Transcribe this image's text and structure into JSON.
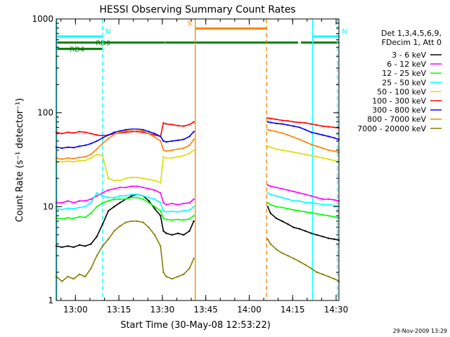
{
  "chart_data": {
    "type": "line",
    "title": "HESSI Observing Summary Count Rates",
    "xlabel": "Start Time (30-May-08 12:53:22)",
    "ylabel": "Count Rate (s⁻¹ detector⁻¹)",
    "ylog": true,
    "xlim_minutes_from_start": [
      0,
      97.6
    ],
    "ylim": [
      1,
      1000
    ],
    "x_ticks": [
      {
        "label": "13:00",
        "minute": 6.63
      },
      {
        "label": "13:15",
        "minute": 21.63
      },
      {
        "label": "13:30",
        "minute": 36.63
      },
      {
        "label": "13:45",
        "minute": 51.63
      },
      {
        "label": "14:00",
        "minute": 66.63
      },
      {
        "label": "14:15",
        "minute": 81.63
      },
      {
        "label": "14:30",
        "minute": 96.63
      }
    ],
    "y_ticks": [
      {
        "label": "1",
        "value": 1
      },
      {
        "label": "10",
        "value": 10
      },
      {
        "label": "100",
        "value": 100
      },
      {
        "label": "1000",
        "value": 1000
      }
    ],
    "gaps_minutes": [
      [
        47.6,
        72.6
      ]
    ],
    "series": [
      {
        "name": "3 - 6 keV",
        "color": "#000000",
        "x": [
          0,
          2,
          4,
          6,
          8,
          10,
          12,
          14,
          16,
          18,
          20,
          22,
          24,
          26,
          28,
          30,
          32,
          34,
          36,
          37,
          38,
          40,
          42,
          44,
          46,
          47.5,
          73,
          74,
          76,
          78,
          80,
          82,
          84,
          86,
          88,
          90,
          92,
          94,
          96,
          97.6
        ],
        "y": [
          3.8,
          3.7,
          3.8,
          3.7,
          3.9,
          3.8,
          4.0,
          4.8,
          6.5,
          9,
          10,
          11,
          12,
          13,
          13.5,
          13,
          11.5,
          9.5,
          8,
          5.5,
          5.2,
          5.0,
          5.2,
          5.0,
          5.5,
          7,
          10,
          8.5,
          7.5,
          7,
          6.5,
          6,
          5.8,
          5.5,
          5.2,
          5,
          4.8,
          4.6,
          4.5,
          4.4
        ]
      },
      {
        "name": "6 - 12 keV",
        "color": "#ff00ff",
        "x": [
          0,
          2,
          4,
          6,
          8,
          10,
          12,
          14,
          16,
          18,
          20,
          22,
          24,
          26,
          28,
          30,
          32,
          34,
          36,
          37,
          38,
          40,
          42,
          44,
          46,
          47.5,
          73,
          74,
          76,
          78,
          80,
          82,
          84,
          86,
          88,
          90,
          92,
          94,
          96,
          97.6
        ],
        "y": [
          11,
          11,
          11.5,
          11,
          11.5,
          11.5,
          12,
          13,
          14,
          15,
          15.5,
          16,
          16,
          16.5,
          16.5,
          16,
          15.5,
          15,
          14,
          11,
          10.5,
          10.8,
          10.5,
          10.8,
          11,
          12,
          17,
          16.5,
          16,
          15.5,
          15,
          14.5,
          14,
          13.5,
          13,
          12.5,
          12,
          12,
          11.8,
          11.5
        ]
      },
      {
        "name": "12 - 25 keV",
        "color": "#00ff00",
        "x": [
          0,
          2,
          4,
          6,
          8,
          10,
          12,
          14,
          16,
          18,
          20,
          22,
          24,
          26,
          28,
          30,
          32,
          34,
          36,
          37,
          38,
          40,
          42,
          44,
          46,
          47.5,
          73,
          74,
          76,
          78,
          80,
          82,
          84,
          86,
          88,
          90,
          92,
          94,
          96,
          97.6
        ],
        "y": [
          7.5,
          7.4,
          7.6,
          7.5,
          7.8,
          7.7,
          8.5,
          10,
          11,
          11.5,
          12,
          12,
          12,
          12.5,
          12.5,
          12,
          11,
          10,
          9,
          7.5,
          7.3,
          7.2,
          7.3,
          7.2,
          7.4,
          8,
          11,
          10.5,
          10,
          9.8,
          9.5,
          9.2,
          9,
          8.8,
          8.6,
          8.4,
          8.2,
          8,
          7.8,
          7.6
        ]
      },
      {
        "name": "25 - 50 keV",
        "color": "#00ffff",
        "x": [
          0,
          2,
          4,
          6,
          8,
          10,
          12,
          14,
          16,
          18,
          20,
          22,
          24,
          26,
          28,
          30,
          32,
          34,
          36,
          37,
          38,
          40,
          42,
          44,
          46,
          47.5,
          73,
          74,
          76,
          78,
          80,
          82,
          84,
          86,
          88,
          90,
          92,
          94,
          96,
          97.6
        ],
        "y": [
          9.5,
          9.3,
          9.6,
          9.5,
          9.8,
          10,
          11,
          14,
          13,
          12.5,
          12.5,
          13,
          13,
          13.5,
          13.5,
          13,
          12.5,
          12,
          11,
          9,
          8.8,
          8.9,
          8.8,
          9,
          9.2,
          10,
          14,
          13.5,
          13,
          12.5,
          12,
          11.5,
          11.5,
          11,
          11,
          10.8,
          10.5,
          10.5,
          10.3,
          10
        ]
      },
      {
        "name": "50 - 100 keV",
        "color": "#dddd00",
        "x": [
          0,
          2,
          4,
          6,
          8,
          10,
          12,
          14,
          16,
          18,
          20,
          22,
          24,
          26,
          28,
          30,
          32,
          34,
          36,
          37,
          38,
          40,
          42,
          44,
          46,
          47.5,
          73,
          74,
          76,
          78,
          80,
          82,
          84,
          86,
          88,
          90,
          92,
          94,
          96,
          97.6
        ],
        "y": [
          30,
          30,
          30.5,
          30,
          31,
          31,
          33,
          36,
          35,
          20,
          19,
          19,
          20,
          20.5,
          20.5,
          20,
          19.5,
          19,
          18,
          34,
          33,
          33,
          34,
          35,
          37,
          40,
          44,
          43,
          41,
          40,
          39,
          38,
          37,
          36,
          35,
          34,
          33,
          32,
          31,
          30
        ]
      },
      {
        "name": "100 - 300 keV",
        "color": "#ff0000",
        "x": [
          0,
          2,
          4,
          6,
          8,
          10,
          12,
          14,
          16,
          18,
          20,
          22,
          24,
          26,
          28,
          30,
          32,
          34,
          36,
          37,
          38,
          40,
          42,
          44,
          46,
          47.5,
          73,
          74,
          76,
          78,
          80,
          82,
          84,
          86,
          88,
          90,
          92,
          94,
          96,
          97.6
        ],
        "y": [
          62,
          60,
          62,
          61,
          63,
          62,
          60,
          58,
          57,
          58,
          60,
          61,
          62,
          63,
          63,
          62,
          60,
          58,
          56,
          78,
          76,
          75,
          73,
          72,
          75,
          80,
          88,
          87,
          85,
          83,
          82,
          80,
          79,
          78,
          76,
          74,
          72,
          71,
          70,
          69
        ]
      },
      {
        "name": "300 - 800 keV",
        "color": "#0000ff",
        "x": [
          0,
          2,
          4,
          6,
          8,
          10,
          12,
          14,
          16,
          18,
          20,
          22,
          24,
          26,
          28,
          30,
          32,
          34,
          36,
          37,
          38,
          40,
          42,
          44,
          46,
          47.5,
          73,
          74,
          76,
          78,
          80,
          82,
          84,
          86,
          88,
          90,
          92,
          94,
          96,
          97.6
        ],
        "y": [
          43,
          42,
          43,
          42.5,
          44,
          45,
          47,
          50,
          54,
          58,
          62,
          64,
          66,
          67,
          67,
          66,
          63,
          60,
          56,
          50,
          49,
          50,
          51,
          52,
          56,
          63,
          80,
          79,
          77,
          76,
          74,
          72,
          70,
          66,
          62,
          60,
          58,
          56,
          54,
          52
        ]
      },
      {
        "name": "800 - 7000 keV",
        "color": "#ff8000",
        "x": [
          0,
          2,
          4,
          6,
          8,
          10,
          12,
          14,
          16,
          18,
          20,
          22,
          24,
          26,
          28,
          30,
          32,
          34,
          36,
          37,
          38,
          40,
          42,
          44,
          46,
          47.5,
          73,
          74,
          76,
          78,
          80,
          82,
          84,
          86,
          88,
          90,
          92,
          94,
          96,
          97.6
        ],
        "y": [
          33,
          32,
          33,
          32.5,
          33.5,
          34,
          36,
          41,
          47,
          53,
          59,
          62,
          64,
          66,
          66,
          64,
          60,
          55,
          50,
          40,
          39,
          40,
          41,
          42,
          45,
          52,
          66,
          65,
          63,
          61,
          58,
          55,
          52,
          49,
          46,
          44,
          42,
          40,
          39,
          38
        ]
      },
      {
        "name": "7000 - 20000 keV",
        "color": "#808000",
        "x": [
          0,
          2,
          4,
          6,
          8,
          10,
          12,
          14,
          16,
          18,
          20,
          22,
          24,
          26,
          28,
          30,
          32,
          34,
          36,
          37,
          38,
          40,
          42,
          44,
          46,
          47.5,
          73,
          74,
          76,
          78,
          80,
          82,
          84,
          86,
          88,
          90,
          92,
          94,
          96,
          97.6
        ],
        "y": [
          1.8,
          1.6,
          1.8,
          1.7,
          1.9,
          1.8,
          2.2,
          3.0,
          3.8,
          4.5,
          5.5,
          6.2,
          6.8,
          7,
          7,
          6.8,
          6,
          5,
          3.8,
          2,
          1.8,
          1.7,
          1.8,
          1.9,
          2.2,
          2.8,
          4.5,
          4,
          3.5,
          3.2,
          3,
          2.8,
          2.6,
          2.4,
          2.2,
          2,
          1.9,
          1.8,
          1.7,
          1.6
        ]
      }
    ],
    "annotations": [
      {
        "text": "N",
        "color": "#00ffff",
        "kind": "bar",
        "segments": [
          [
            0,
            16
          ]
        ],
        "value": 650
      },
      {
        "text": "N",
        "color": "#00ffff",
        "kind": "bar",
        "segments": [
          [
            88.5,
            97.6
          ]
        ],
        "value": 650
      },
      {
        "text": "RD0",
        "color": "#008000",
        "kind": "label",
        "minute": 16.2,
        "value": 560
      },
      {
        "text": "",
        "color": "#008000",
        "kind": "bar",
        "segments": [
          [
            0,
            37.4
          ],
          [
            37.5,
            72.6
          ],
          [
            72.7,
            83.5
          ],
          [
            84.5,
            97.6
          ]
        ],
        "value": 560
      },
      {
        "text": "RD4",
        "color": "#008000",
        "kind": "label",
        "minute": 7.2,
        "value": 480
      },
      {
        "text": "",
        "color": "#008000",
        "kind": "bar",
        "segments": [
          [
            0,
            16
          ]
        ],
        "value": 480
      },
      {
        "text": "S",
        "color": "#ff8000",
        "kind": "bar",
        "segments": [
          [
            48.0,
            72.6
          ]
        ],
        "value": 790
      }
    ],
    "vertical_lines": [
      {
        "minute": 0.2,
        "color": "#00ffff",
        "style": "solid"
      },
      {
        "minute": 16.0,
        "color": "#00ffff",
        "style": "dashed"
      },
      {
        "minute": 48.0,
        "color": "#ff8000",
        "style": "solid"
      },
      {
        "minute": 72.6,
        "color": "#ff8000",
        "style": "dashed"
      },
      {
        "minute": 88.5,
        "color": "#00ffff",
        "style": "solid"
      },
      {
        "minute": 97.1,
        "color": "#00ffff",
        "style": "dashed"
      }
    ],
    "legend": {
      "position": "right",
      "header": [
        "Det 1,3,4,5,6,9,",
        "FDecim 1, Att 0"
      ]
    }
  },
  "footer": {
    "timestamp": "29-Nov-2009 13:29"
  }
}
